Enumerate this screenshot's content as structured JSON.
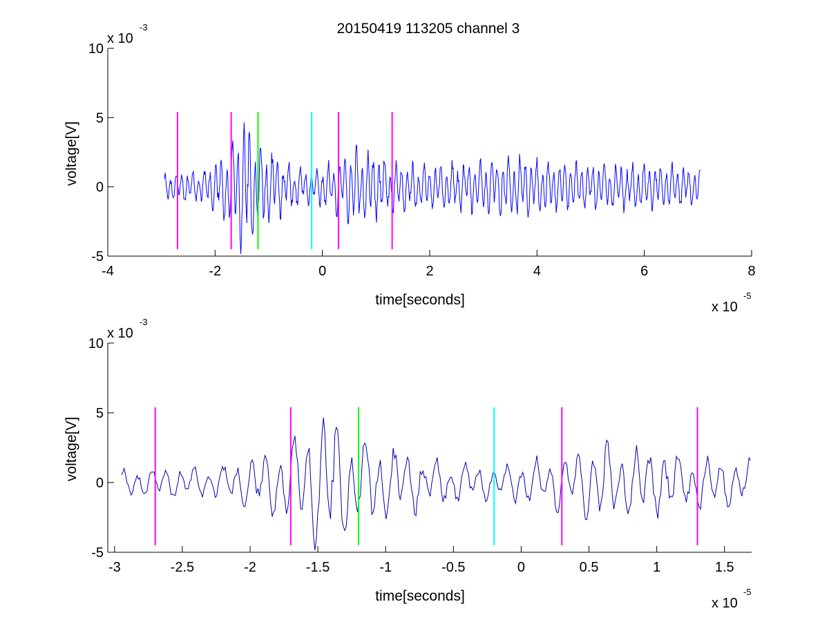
{
  "figure": {
    "title": "20150419 113205 channel 3"
  },
  "chart_data": [
    {
      "type": "line",
      "xlabel": "time[seconds]",
      "ylabel": "voltage[V]",
      "xlim": [
        -4,
        8
      ],
      "ylim": [
        -5,
        10
      ],
      "x_exponent_label": "x 10",
      "x_exponent": "-5",
      "y_exponent_label": "x 10",
      "y_exponent": "-3",
      "xticks": [
        -4,
        -2,
        0,
        2,
        4,
        6,
        8
      ],
      "xtick_labels": [
        "-4",
        "-2",
        "0",
        "2",
        "4",
        "6",
        "8"
      ],
      "yticks": [
        -5,
        0,
        5,
        10
      ],
      "ytick_labels": [
        "-5",
        "0",
        "5",
        "10"
      ],
      "grid": false,
      "signal": {
        "color": "#0000ff",
        "x_start": -2.95,
        "x_end": 7.05,
        "seed": 19,
        "envelope": [
          [
            -2.95,
            0.45
          ],
          [
            -2.2,
            0.55
          ],
          [
            -2.05,
            0.9
          ],
          [
            -1.9,
            1.0
          ],
          [
            -1.8,
            1.25
          ],
          [
            -1.6,
            1.8
          ],
          [
            -1.45,
            2.3
          ],
          [
            -1.3,
            1.9
          ],
          [
            -1.15,
            1.45
          ],
          [
            -0.9,
            1.1
          ],
          [
            -0.6,
            0.8
          ],
          [
            -0.2,
            0.55
          ],
          [
            0.2,
            0.85
          ],
          [
            0.6,
            1.35
          ],
          [
            1.0,
            1.15
          ],
          [
            1.4,
            0.85
          ],
          [
            2.0,
            0.75
          ],
          [
            3.0,
            0.9
          ],
          [
            3.6,
            1.1
          ],
          [
            4.5,
            0.8
          ],
          [
            5.5,
            0.8
          ],
          [
            6.5,
            0.75
          ],
          [
            7.05,
            0.6
          ]
        ]
      },
      "markers": [
        {
          "x": -2.7,
          "color": "#ff00ff",
          "y_range": [
            -4.5,
            5.4
          ]
        },
        {
          "x": -1.7,
          "color": "#ff00ff",
          "y_range": [
            -4.5,
            5.4
          ]
        },
        {
          "x": -1.2,
          "color": "#00ff00",
          "y_range": [
            -4.5,
            5.4
          ]
        },
        {
          "x": -0.2,
          "color": "#00ffff",
          "y_range": [
            -4.5,
            5.4
          ]
        },
        {
          "x": 0.3,
          "color": "#ff00ff",
          "y_range": [
            -4.5,
            5.4
          ]
        },
        {
          "x": 1.3,
          "color": "#ff00ff",
          "y_range": [
            -4.5,
            5.4
          ]
        }
      ]
    },
    {
      "type": "line",
      "xlabel": "time[seconds]",
      "ylabel": "voltage[V]",
      "xlim": [
        -3.05,
        1.7
      ],
      "ylim": [
        -5,
        10
      ],
      "x_exponent_label": "x 10",
      "x_exponent": "-5",
      "y_exponent_label": "x 10",
      "y_exponent": "-3",
      "xticks": [
        -3,
        -2.5,
        -2,
        -1.5,
        -1,
        -0.5,
        0,
        0.5,
        1,
        1.5
      ],
      "xtick_labels": [
        "-3",
        "-2.5",
        "-2",
        "-1.5",
        "-1",
        "-0.5",
        "0",
        "0.5",
        "1",
        "1.5"
      ],
      "yticks": [
        -5,
        0,
        5,
        10
      ],
      "ytick_labels": [
        "-5",
        "0",
        "5",
        "10"
      ],
      "grid": false,
      "signal": {
        "color": "#0000aa",
        "x_start": -2.95,
        "x_end": 1.7,
        "seed": 19,
        "envelope": [
          [
            -2.95,
            0.45
          ],
          [
            -2.2,
            0.55
          ],
          [
            -2.05,
            0.9
          ],
          [
            -1.9,
            1.0
          ],
          [
            -1.8,
            1.25
          ],
          [
            -1.6,
            1.8
          ],
          [
            -1.45,
            2.3
          ],
          [
            -1.3,
            1.9
          ],
          [
            -1.15,
            1.45
          ],
          [
            -0.9,
            1.1
          ],
          [
            -0.6,
            0.8
          ],
          [
            -0.2,
            0.55
          ],
          [
            0.2,
            0.85
          ],
          [
            0.6,
            1.35
          ],
          [
            1.0,
            1.15
          ],
          [
            1.4,
            0.85
          ],
          [
            1.7,
            0.75
          ]
        ]
      },
      "markers": [
        {
          "x": -2.7,
          "color": "#ff00ff",
          "y_range": [
            -4.5,
            5.4
          ]
        },
        {
          "x": -1.7,
          "color": "#ff00ff",
          "y_range": [
            -4.5,
            5.4
          ]
        },
        {
          "x": -1.2,
          "color": "#00ff00",
          "y_range": [
            -4.5,
            5.4
          ]
        },
        {
          "x": -0.2,
          "color": "#00ffff",
          "y_range": [
            -4.5,
            5.4
          ]
        },
        {
          "x": 0.3,
          "color": "#ff00ff",
          "y_range": [
            -4.5,
            5.4
          ]
        },
        {
          "x": 1.3,
          "color": "#ff00ff",
          "y_range": [
            -4.5,
            5.4
          ]
        }
      ]
    }
  ]
}
